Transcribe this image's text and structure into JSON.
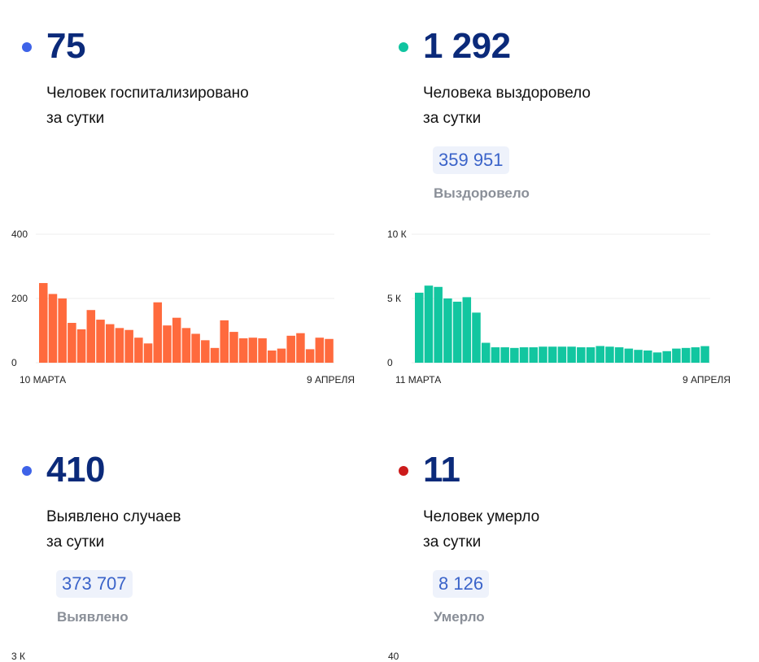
{
  "cards": {
    "hospitalized": {
      "value": "75",
      "line1": "Человек госпитализировано",
      "line2": "за сутки",
      "dot_color": "#3e63e8"
    },
    "recovered": {
      "value": "1 292",
      "line1": "Человека выздоровело",
      "line2": "за сутки",
      "dot_color": "#10c4a0",
      "total": "359 951",
      "total_label": "Выздоровело"
    },
    "cases": {
      "value": "410",
      "line1": "Выявлено случаев",
      "line2": "за сутки",
      "dot_color": "#3e63e8",
      "total": "373 707",
      "total_label": "Выявлено"
    },
    "deaths": {
      "value": "11",
      "line1": "Человек умерло",
      "line2": "за сутки",
      "dot_color": "#cc1b1b",
      "total": "8 126",
      "total_label": "Умерло"
    }
  },
  "chart_data": [
    {
      "type": "bar",
      "color": "#ff6a3d",
      "ylim": [
        0,
        400
      ],
      "y_ticks": [
        "0",
        "200",
        "400"
      ],
      "x_start_label": "10 МАРТА",
      "x_end_label": "9 АПРЕЛЯ",
      "values": [
        248,
        214,
        200,
        124,
        104,
        164,
        134,
        120,
        108,
        102,
        78,
        60,
        188,
        116,
        140,
        108,
        90,
        70,
        46,
        132,
        96,
        76,
        78,
        76,
        38,
        44,
        84,
        92,
        42,
        78,
        74
      ]
    },
    {
      "type": "bar",
      "color": "#12c6a0",
      "ylim": [
        0,
        10000
      ],
      "y_ticks": [
        "0",
        "5 К",
        "10 К"
      ],
      "x_start_label": "11 МАРТА",
      "x_end_label": "9 АПРЕЛЯ",
      "values": [
        5450,
        6000,
        5900,
        5000,
        4750,
        5100,
        3900,
        1550,
        1200,
        1200,
        1150,
        1200,
        1200,
        1250,
        1250,
        1250,
        1250,
        1200,
        1200,
        1300,
        1250,
        1200,
        1100,
        1000,
        950,
        800,
        900,
        1100,
        1150,
        1200,
        1292
      ]
    }
  ],
  "partial_axis_labels": [
    "3 К",
    "40"
  ]
}
